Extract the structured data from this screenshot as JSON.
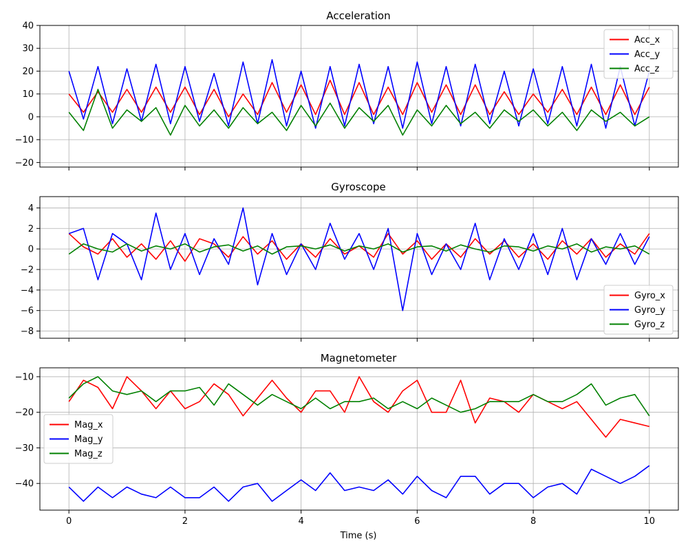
{
  "figure": {
    "xlabel": "Time (s)",
    "x_ticks": [
      0,
      2,
      4,
      6,
      8,
      10
    ],
    "grid": true
  },
  "chart_data": [
    {
      "type": "line",
      "title": "Acceleration",
      "xlabel": "",
      "ylabel": "",
      "xlim": [
        -0.5,
        10.5
      ],
      "ylim": [
        -22,
        40
      ],
      "y_ticks": [
        -20,
        -10,
        0,
        10,
        20,
        30,
        40
      ],
      "legend_position": "top-right",
      "x": [
        0,
        0.25,
        0.5,
        0.75,
        1,
        1.25,
        1.5,
        1.75,
        2,
        2.25,
        2.5,
        2.75,
        3,
        3.25,
        3.5,
        3.75,
        4,
        4.25,
        4.5,
        4.75,
        5,
        5.25,
        5.5,
        5.75,
        6,
        6.25,
        6.5,
        6.75,
        7,
        7.25,
        7.5,
        7.75,
        8,
        8.25,
        8.5,
        8.75,
        9,
        9.25,
        9.5,
        9.75,
        10
      ],
      "series": [
        {
          "name": "Acc_x",
          "color": "#ff0000",
          "values": [
            10,
            2,
            11,
            2,
            12,
            2,
            13,
            2,
            13,
            1,
            12,
            0,
            10,
            1,
            15,
            2,
            14,
            1,
            16,
            1,
            15,
            1,
            13,
            1,
            15,
            2,
            14,
            1,
            14,
            1,
            11,
            1,
            10,
            2,
            12,
            1,
            13,
            1,
            14,
            1,
            13
          ]
        },
        {
          "name": "Acc_y",
          "color": "#0000ff",
          "values": [
            20,
            -1,
            22,
            -3,
            21,
            -2,
            23,
            -3,
            22,
            -2,
            19,
            -4,
            24,
            -3,
            25,
            -4,
            20,
            -5,
            22,
            -4,
            23,
            -3,
            22,
            -5,
            24,
            -3,
            22,
            -4,
            23,
            -3,
            20,
            -4,
            21,
            -3,
            22,
            -4,
            23,
            -5,
            22,
            -4,
            20
          ]
        },
        {
          "name": "Acc_z",
          "color": "#008000",
          "values": [
            2,
            -6,
            12,
            -5,
            3,
            -2,
            4,
            -8,
            5,
            -4,
            3,
            -5,
            4,
            -3,
            2,
            -6,
            5,
            -4,
            6,
            -5,
            4,
            -2,
            5,
            -8,
            3,
            -4,
            5,
            -3,
            2,
            -5,
            3,
            -2,
            3,
            -4,
            2,
            -6,
            3,
            -2,
            2,
            -4,
            0
          ]
        }
      ]
    },
    {
      "type": "line",
      "title": "Gyroscope",
      "xlabel": "",
      "ylabel": "",
      "xlim": [
        -0.5,
        10.5
      ],
      "ylim": [
        -8.7,
        5.1
      ],
      "y_ticks": [
        -8,
        -6,
        -4,
        -2,
        0,
        2,
        4
      ],
      "legend_position": "bottom-right",
      "x": [
        0,
        0.25,
        0.5,
        0.75,
        1,
        1.25,
        1.5,
        1.75,
        2,
        2.25,
        2.5,
        2.75,
        3,
        3.25,
        3.5,
        3.75,
        4,
        4.25,
        4.5,
        4.75,
        5,
        5.25,
        5.5,
        5.75,
        6,
        6.25,
        6.5,
        6.75,
        7,
        7.25,
        7.5,
        7.75,
        8,
        8.25,
        8.5,
        8.75,
        9,
        9.25,
        9.5,
        9.75,
        10
      ],
      "series": [
        {
          "name": "Gyro_x",
          "color": "#ff0000",
          "values": [
            1.5,
            0.2,
            -0.5,
            1.0,
            -0.8,
            0.5,
            -1.0,
            0.8,
            -1.2,
            1.0,
            0.5,
            -0.8,
            1.2,
            -0.5,
            0.8,
            -1.0,
            0.5,
            -0.8,
            1.0,
            -0.5,
            0.3,
            -0.8,
            1.5,
            -0.5,
            0.8,
            -1.0,
            0.5,
            -0.8,
            1.0,
            -0.5,
            0.8,
            -0.8,
            0.5,
            -1.0,
            0.8,
            -0.5,
            1.0,
            -0.8,
            0.5,
            -0.5,
            1.5
          ]
        },
        {
          "name": "Gyro_y",
          "color": "#0000ff",
          "values": [
            1.5,
            2.0,
            -3.0,
            1.5,
            0.5,
            -3.0,
            3.5,
            -2.0,
            1.5,
            -2.5,
            1.0,
            -1.5,
            4.0,
            -3.5,
            1.5,
            -2.5,
            0.5,
            -2.0,
            2.5,
            -1.0,
            1.5,
            -2.0,
            2.0,
            -6.0,
            1.5,
            -2.5,
            0.5,
            -2.0,
            2.5,
            -3.0,
            1.0,
            -2.0,
            1.5,
            -2.5,
            2.0,
            -3.0,
            1.0,
            -1.5,
            1.5,
            -1.5,
            1.2
          ]
        },
        {
          "name": "Gyro_z",
          "color": "#008000",
          "values": [
            -0.5,
            0.5,
            0,
            -0.3,
            0.5,
            -0.2,
            0.3,
            0,
            0.5,
            -0.3,
            0.2,
            0.4,
            -0.2,
            0.3,
            -0.5,
            0.2,
            0.3,
            0,
            0.4,
            -0.2,
            0.3,
            0,
            0.5,
            -0.3,
            0.2,
            0.3,
            -0.2,
            0.4,
            0,
            -0.3,
            0.3,
            0.2,
            -0.2,
            0.3,
            0,
            0.5,
            -0.3,
            0.2,
            0,
            0.3,
            -0.5
          ]
        }
      ]
    },
    {
      "type": "line",
      "title": "Magnetometer",
      "xlabel": "Time (s)",
      "ylabel": "",
      "xlim": [
        -0.5,
        10.5
      ],
      "ylim": [
        -47.5,
        -7.5
      ],
      "y_ticks": [
        -40,
        -30,
        -20,
        -10
      ],
      "legend_position": "center-left",
      "x": [
        0,
        0.25,
        0.5,
        0.75,
        1,
        1.25,
        1.5,
        1.75,
        2,
        2.25,
        2.5,
        2.75,
        3,
        3.25,
        3.5,
        3.75,
        4,
        4.25,
        4.5,
        4.75,
        5,
        5.25,
        5.5,
        5.75,
        6,
        6.25,
        6.5,
        6.75,
        7,
        7.25,
        7.5,
        7.75,
        8,
        8.25,
        8.5,
        8.75,
        9,
        9.25,
        9.5,
        9.75,
        10
      ],
      "series": [
        {
          "name": "Mag_x",
          "color": "#ff0000",
          "values": [
            -17,
            -11,
            -13,
            -19,
            -10,
            -14,
            -19,
            -14,
            -19,
            -17,
            -12,
            -15,
            -21,
            -16,
            -11,
            -16,
            -20,
            -14,
            -14,
            -20,
            -10,
            -17,
            -20,
            -14,
            -11,
            -20,
            -20,
            -11,
            -23,
            -16,
            -17,
            -20,
            -15,
            -17,
            -19,
            -17,
            -22,
            -27,
            -22,
            -23,
            -24
          ]
        },
        {
          "name": "Mag_y",
          "color": "#0000ff",
          "values": [
            -41,
            -45,
            -41,
            -44,
            -41,
            -43,
            -44,
            -41,
            -44,
            -44,
            -41,
            -45,
            -41,
            -40,
            -45,
            -42,
            -39,
            -42,
            -37,
            -42,
            -41,
            -42,
            -39,
            -43,
            -38,
            -42,
            -44,
            -38,
            -38,
            -43,
            -40,
            -40,
            -44,
            -41,
            -40,
            -43,
            -36,
            -38,
            -40,
            -38,
            -35
          ]
        },
        {
          "name": "Mag_z",
          "color": "#008000",
          "values": [
            -16,
            -12,
            -10,
            -14,
            -15,
            -14,
            -17,
            -14,
            -14,
            -13,
            -18,
            -12,
            -15,
            -18,
            -15,
            -17,
            -19,
            -16,
            -19,
            -17,
            -17,
            -16,
            -19,
            -17,
            -19,
            -16,
            -18,
            -20,
            -19,
            -17,
            -17,
            -17,
            -15,
            -17,
            -17,
            -15,
            -12,
            -18,
            -16,
            -15,
            -21
          ]
        }
      ]
    }
  ]
}
